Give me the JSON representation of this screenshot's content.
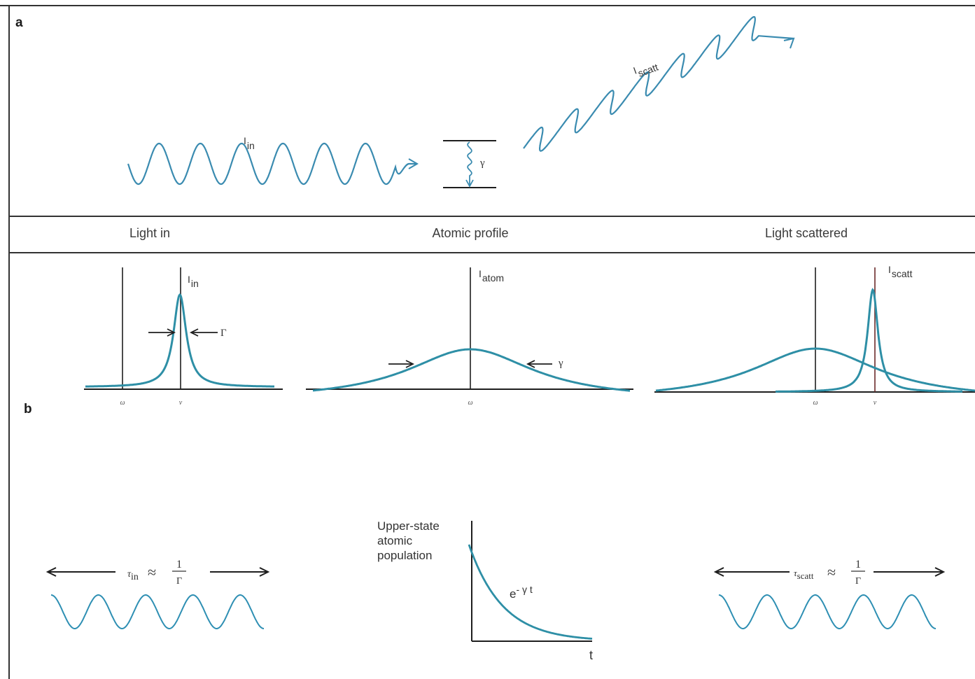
{
  "panel_a": {
    "letter": "a",
    "wave_in_label": "I",
    "wave_in_sub": "in",
    "gamma": "γ",
    "wave_scatt_label": "I",
    "wave_scatt_sub": "scatt"
  },
  "headers": {
    "light_in": "Light in",
    "atomic_profile": "Atomic profile",
    "light_scattered": "Light scattered"
  },
  "spectra": {
    "light_in": {
      "axis_label": "I",
      "axis_sub": "in",
      "width_symbol": "Γ",
      "tick_omega": "ω",
      "tick_nu": "ν"
    },
    "atomic_profile": {
      "axis_label": "I",
      "axis_sub": "atom",
      "width_symbol": "γ",
      "tick_omega": "ω"
    },
    "light_scattered": {
      "axis_label": "I",
      "axis_sub": "scatt",
      "tick_omega": "ω",
      "tick_nu": "ν"
    }
  },
  "panel_b": {
    "letter": "b",
    "tau_in": {
      "symbol": "τ",
      "sub": "in",
      "approx": "≈",
      "numerator": "1",
      "denominator": "Γ"
    },
    "population": {
      "ylabel_lines": [
        "Upper-state",
        "atomic",
        "population"
      ],
      "curve_label": "e",
      "curve_exp": "- γ t",
      "xlabel": "t"
    },
    "tau_scatt": {
      "symbol": "τ",
      "sub": "scatt",
      "approx": "≈",
      "numerator": "1",
      "denominator": "Γ"
    }
  },
  "colors": {
    "wave": "#3a8bb0",
    "curve": "#2e8fa6",
    "line": "#1e1e1e",
    "rule": "#333333"
  }
}
